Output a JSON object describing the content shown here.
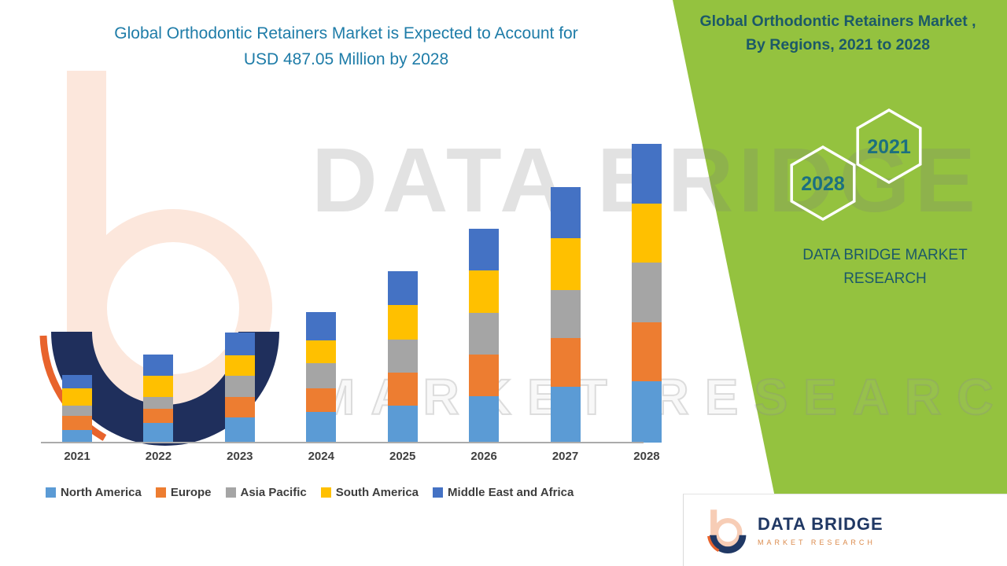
{
  "title": {
    "line1": "Global Orthodontic Retainers Market is Expected to Account for",
    "line2": "USD 487.05 Million by 2028"
  },
  "side_panel": {
    "title": "Global Orthodontic Retainers Market ,",
    "subtitle": "By Regions, 2021 to 2028",
    "hexagon_back_label": "2028",
    "hexagon_front_label": "2021",
    "brand_line1": "DATA BRIDGE MARKET",
    "brand_line2": "RESEARCH",
    "background_color": "#94C23F",
    "text_color": "#1C5968",
    "hexagon_number_color": "#1C7080"
  },
  "watermark": {
    "line1": "DATA BRIDGE",
    "line2": "MARKET RESEARCH"
  },
  "footer_logo": {
    "brand": "DATA BRIDGE",
    "tagline": "MARKET RESEARCH"
  },
  "chart_data": {
    "type": "bar",
    "stacked": true,
    "unit": "USD Million",
    "title": "Global Orthodontic Retainers Market is Expected to Account for USD 487.05 Million by 2028",
    "categories": [
      "2021",
      "2022",
      "2023",
      "2024",
      "2025",
      "2026",
      "2027",
      "2028"
    ],
    "series": [
      {
        "name": "North America",
        "color": "#5B9BD5",
        "values": [
          21,
          32,
          41,
          50,
          60,
          76,
          91,
          100
        ]
      },
      {
        "name": "Europe",
        "color": "#ED7D31",
        "values": [
          22,
          23,
          33,
          38,
          54,
          67,
          79,
          96
        ]
      },
      {
        "name": "Asia Pacific",
        "color": "#A5A5A5",
        "values": [
          17,
          19,
          35,
          41,
          54,
          69,
          79,
          97
        ]
      },
      {
        "name": "South America",
        "color": "#FFC000",
        "values": [
          28,
          35,
          33,
          38,
          56,
          69,
          85,
          97
        ]
      },
      {
        "name": "Middle East and Africa",
        "color": "#4472C4",
        "values": [
          22,
          35,
          37,
          46,
          56,
          68,
          83,
          97.05
        ]
      }
    ],
    "ylim": [
      0,
      487.05
    ],
    "y_axis_visible": false,
    "grid": false,
    "legend_position": "bottom"
  }
}
